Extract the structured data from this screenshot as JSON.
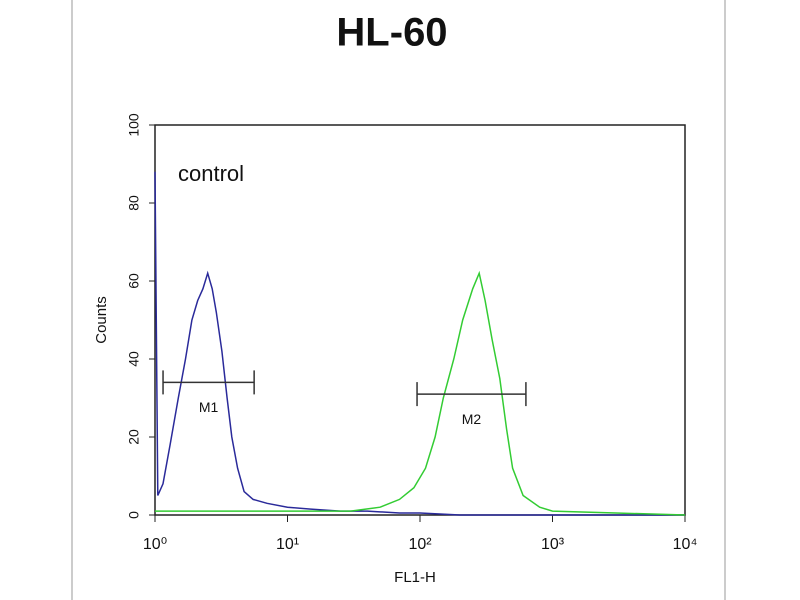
{
  "chart_data": {
    "type": "line",
    "title": "HL-60",
    "xlabel": "FL1-H",
    "ylabel": "Counts",
    "annotation": "control",
    "xscale": "log",
    "xlim": [
      1,
      10000
    ],
    "xticks": [
      {
        "value": 1,
        "label": "10⁰"
      },
      {
        "value": 10,
        "label": "10¹"
      },
      {
        "value": 100,
        "label": "10²"
      },
      {
        "value": 1000,
        "label": "10³"
      },
      {
        "value": 10000,
        "label": "10⁴"
      }
    ],
    "ylim": [
      0,
      100
    ],
    "yticks": [
      0,
      20,
      40,
      60,
      80,
      100
    ],
    "series": [
      {
        "color": "#2a2a9a",
        "x": [
          1,
          1.05,
          1.15,
          1.3,
          1.5,
          1.7,
          1.9,
          2.1,
          2.3,
          2.5,
          2.7,
          2.9,
          3.2,
          3.5,
          3.8,
          4.2,
          4.7,
          5.5,
          7,
          10,
          15,
          25,
          40,
          70,
          100,
          200,
          1000,
          10000
        ],
        "values": [
          88,
          5,
          8,
          18,
          30,
          40,
          50,
          55,
          58,
          62,
          58,
          52,
          42,
          30,
          20,
          12,
          6,
          4,
          3,
          2,
          1.5,
          1,
          1,
          0.5,
          0.5,
          0,
          0,
          0
        ]
      },
      {
        "color": "#33cc33",
        "x": [
          1,
          3,
          10,
          30,
          50,
          70,
          90,
          110,
          130,
          150,
          180,
          210,
          250,
          280,
          310,
          350,
          400,
          450,
          500,
          600,
          800,
          1000,
          3000,
          10000
        ],
        "values": [
          1,
          1,
          1,
          1,
          2,
          4,
          7,
          12,
          20,
          30,
          40,
          50,
          58,
          62,
          55,
          45,
          35,
          22,
          12,
          5,
          2,
          1,
          0.5,
          0
        ]
      }
    ],
    "markers": [
      {
        "label": "M1",
        "range": [
          1.15,
          5.6
        ],
        "y": 34
      },
      {
        "label": "M2",
        "range": [
          95,
          630
        ],
        "y": 31
      }
    ]
  }
}
